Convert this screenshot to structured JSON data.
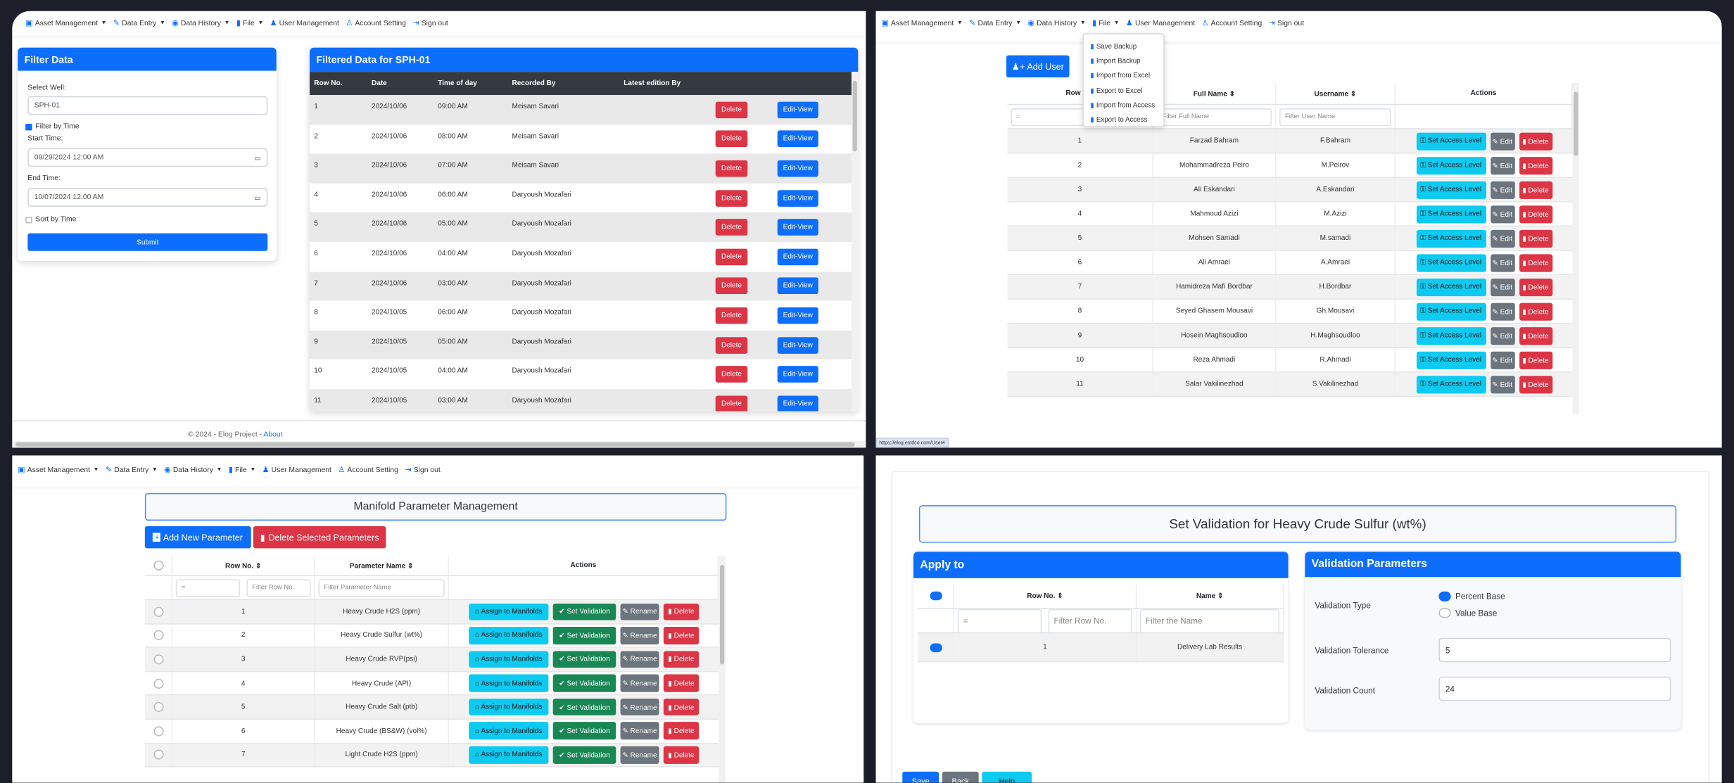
{
  "nav": [
    {
      "label": "Asset Management",
      "icon": "briefcase-icon",
      "glyph": "▣",
      "caret": true
    },
    {
      "label": "Data Entry",
      "icon": "edit-icon",
      "glyph": "✎",
      "caret": true
    },
    {
      "label": "Data History",
      "icon": "eye-icon",
      "glyph": "◉",
      "caret": true
    },
    {
      "label": "File",
      "icon": "file-icon",
      "glyph": "▮",
      "caret": true
    },
    {
      "label": "User Management",
      "icon": "users-icon",
      "glyph": "♟",
      "caret": false
    },
    {
      "label": "Account Setting",
      "icon": "user-edit-icon",
      "glyph": "♙",
      "caret": false
    },
    {
      "label": "Sign out",
      "icon": "sign-out-icon",
      "glyph": "⇥",
      "caret": false
    }
  ],
  "colors": {
    "primary": "#0d6efd",
    "danger": "#dc3545",
    "info": "#0dcaf0",
    "secondary": "#6c757d",
    "success": "#198754",
    "table_head": "#343a40"
  },
  "filter": {
    "title": "Filter Data",
    "well_label": "Select Well:",
    "well_value": "SPH-01",
    "filter_by_time": "Filter by Time",
    "filter_by_time_checked": true,
    "start_label": "Start Time:",
    "start_value": "09/29/2024 12:00 AM",
    "end_label": "End Time:",
    "end_value": "10/07/2024 12:00 AM",
    "sort_label": "Sort by Time",
    "sort_checked": false,
    "submit": "Submit"
  },
  "filtered": {
    "title": "Filtered Data for SPH-01",
    "columns": [
      "Row No.",
      "Date",
      "Time of day",
      "Recorded By",
      "Latest edition By"
    ],
    "delete_label": "Delete",
    "edit_label": "Edit-View",
    "rows": [
      [
        "1",
        "2024/10/06",
        "09:00 AM",
        "Meisam Savari",
        ""
      ],
      [
        "2",
        "2024/10/06",
        "08:00 AM",
        "Meisam Savari",
        ""
      ],
      [
        "3",
        "2024/10/06",
        "07:00 AM",
        "Meisam Savari",
        ""
      ],
      [
        "4",
        "2024/10/06",
        "06:00 AM",
        "Daryoush Mozafari",
        ""
      ],
      [
        "5",
        "2024/10/06",
        "05:00 AM",
        "Daryoush Mozafari",
        ""
      ],
      [
        "6",
        "2024/10/06",
        "04:00 AM",
        "Daryoush Mozafari",
        ""
      ],
      [
        "7",
        "2024/10/06",
        "03:00 AM",
        "Daryoush Mozafari",
        ""
      ],
      [
        "8",
        "2024/10/05",
        "06:00 AM",
        "Daryoush Mozafari",
        ""
      ],
      [
        "9",
        "2024/10/05",
        "05:00 AM",
        "Daryoush Mozafari",
        ""
      ],
      [
        "10",
        "2024/10/05",
        "04:00 AM",
        "Daryoush Mozafari",
        ""
      ],
      [
        "11",
        "2024/10/05",
        "03:00 AM",
        "Daryoush Mozafari",
        ""
      ]
    ]
  },
  "footer": {
    "text": "© 2024 - Elog Project - ",
    "about": "About"
  },
  "users": {
    "file_menu": [
      "Save Backup",
      "Import Backup",
      "Import from Excel",
      "Export to Excel",
      "Import from Access",
      "Export to Access"
    ],
    "add_user": "Add User",
    "columns": [
      "Row No.",
      "Full Name ⇕",
      "Username ⇕",
      "Actions"
    ],
    "filters": [
      "=",
      "Filter Full Name",
      "Filter User Name"
    ],
    "set_access": "Set Access Level",
    "edit": "Edit",
    "delete": "Delete",
    "rows": [
      [
        "1",
        "Farzad Bahram",
        "F.Bahram"
      ],
      [
        "2",
        "Mohammadreza Peiro",
        "M.Peirov"
      ],
      [
        "3",
        "Ali Eskandari",
        "A.Eskandari"
      ],
      [
        "4",
        "Mahmoud Azizi",
        "M.Azizi"
      ],
      [
        "5",
        "Mohsen Samadi",
        "M.samadi"
      ],
      [
        "6",
        "Ali Amraei",
        "A.Amraei"
      ],
      [
        "7",
        "Hamidreza Mafi Bordbar",
        "H.Bordbar"
      ],
      [
        "8",
        "Seyed Ghasem Mousavi",
        "Gh.Mousavi"
      ],
      [
        "9",
        "Hosein Maghsoudloo",
        "H.Maghsoudloo"
      ],
      [
        "10",
        "Reza Ahmadi",
        "R.Ahmadi"
      ],
      [
        "11",
        "Salar Vakilinezhad",
        "S.Vakilinezhad"
      ]
    ],
    "status_url": "https://elog.estdco.com/User#"
  },
  "params": {
    "title": "Manifold Parameter Management",
    "add": "Add New Parameter",
    "delete_selected": "Delete Selected Parameters",
    "columns": [
      "",
      "Row No. ⇕",
      "Parameter Name ⇕",
      "Actions"
    ],
    "filters": [
      "=",
      "Filter Row No.",
      "Filter Parameter Name"
    ],
    "assign": "Assign to Manifolds",
    "set_validation": "Set Validation",
    "rename": "Rename",
    "delete": "Delete",
    "rows": [
      [
        "1",
        "Heavy Crude H2S (ppm)"
      ],
      [
        "2",
        "Heavy Crude Sulfur (wt%)"
      ],
      [
        "3",
        "Heavy Crude RVP(psi)"
      ],
      [
        "4",
        "Heavy Crude (API)"
      ],
      [
        "5",
        "Heavy Crude Salt (ptb)"
      ],
      [
        "6",
        "Heavy Crude (BS&W) (vol%)"
      ],
      [
        "7",
        "Light Crude H2S (ppm)"
      ]
    ]
  },
  "validation": {
    "title": "Set Validation for Heavy Crude Sulfur (wt%)",
    "apply_to": "Apply to",
    "columns": [
      "",
      "Row No. ⇕",
      "Name ⇕"
    ],
    "filters": [
      "=",
      "Filter Row No.",
      "Filter the Name"
    ],
    "rows": [
      [
        "1",
        "Delivery Lab Results"
      ]
    ],
    "params_title": "Validation Parameters",
    "type_label": "Validation Type",
    "options": [
      "Percent Base",
      "Value Base"
    ],
    "selected_option": "Percent Base",
    "tolerance_label": "Validation Tolerance",
    "tolerance_value": "5",
    "count_label": "Validation Count",
    "count_value": "24",
    "buttons": [
      "Save",
      "Back",
      "Help"
    ]
  }
}
